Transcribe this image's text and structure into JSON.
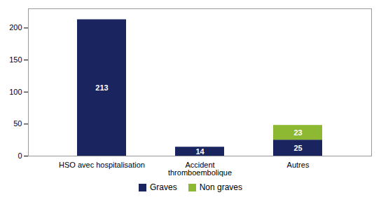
{
  "chart_data": {
    "type": "bar",
    "stacked": true,
    "categories": [
      "HSO avec hospitalisation",
      "Accident\nthromboembolique",
      "Autres"
    ],
    "series": [
      {
        "name": "Graves",
        "color": "#1a2560",
        "values": [
          213,
          14,
          25
        ]
      },
      {
        "name": "Non graves",
        "color": "#8db832",
        "values": [
          0,
          0,
          23
        ]
      }
    ],
    "ylim": [
      0,
      230
    ],
    "yticks": [
      0,
      50,
      100,
      150,
      200
    ],
    "grid": false,
    "legend": "bottom",
    "data_labels": true
  }
}
